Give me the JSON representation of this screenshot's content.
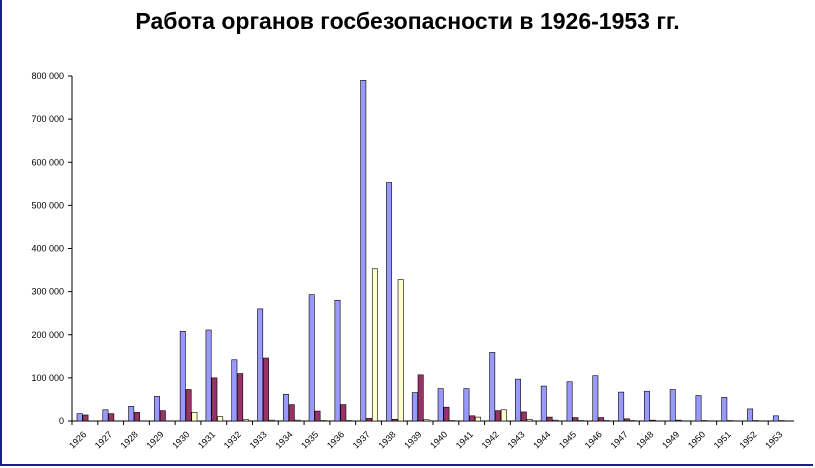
{
  "chart_data": {
    "type": "bar",
    "title": "Работа органов госбезопасности в 1926-1953 гг.",
    "xlabel": "",
    "ylabel": "",
    "ylim": [
      0,
      800000
    ],
    "yticks": [
      "0",
      "100 000",
      "200 000",
      "300 000",
      "400 000",
      "500 000",
      "600 000",
      "700 000",
      "800 000"
    ],
    "grid": false,
    "legend": "none",
    "categories": [
      "1926",
      "1927",
      "1928",
      "1929",
      "1930",
      "1931",
      "1932",
      "1933",
      "1934",
      "1935",
      "1936",
      "1937",
      "1938",
      "1939",
      "1940",
      "1941",
      "1942",
      "1943",
      "1944",
      "1945",
      "1946",
      "1947",
      "1948",
      "1949",
      "1950",
      "1951",
      "1952",
      "1953"
    ],
    "series": [
      {
        "color": "#9999ff",
        "values": [
          17000,
          26000,
          34000,
          57000,
          208000,
          211000,
          142000,
          260000,
          62000,
          293000,
          280000,
          790000,
          553000,
          66000,
          75000,
          75000,
          159000,
          97000,
          81000,
          91000,
          105000,
          67000,
          69000,
          73000,
          59000,
          55000,
          28000,
          12000
        ]
      },
      {
        "color": "#993366",
        "values": [
          14000,
          17000,
          20000,
          24000,
          73000,
          100000,
          110000,
          146000,
          38000,
          23000,
          38000,
          6000,
          4000,
          107000,
          32000,
          12000,
          24000,
          21000,
          9000,
          8000,
          8000,
          5000,
          2000,
          2000,
          1000,
          1000,
          1000,
          1000
        ]
      },
      {
        "color": "#ffffcc",
        "values": [
          0,
          0,
          0,
          0,
          20000,
          10000,
          3000,
          2000,
          2000,
          1000,
          1000,
          353000,
          328000,
          3000,
          1000,
          9000,
          26000,
          4000,
          2000,
          1000,
          1000,
          1000,
          0,
          0,
          0,
          0,
          0,
          0
        ]
      }
    ]
  }
}
